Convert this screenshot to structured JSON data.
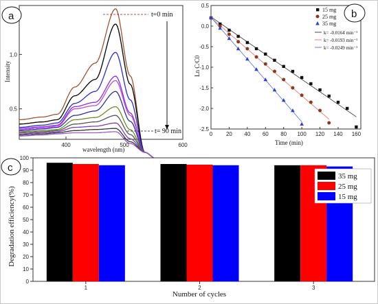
{
  "chart_data": [
    {
      "id": "a",
      "type": "line",
      "panel_label": "a",
      "xlabel": "wavelength (nm)",
      "ylabel": "Intensity",
      "xlim": [
        320,
        600
      ],
      "ylim": [
        0.22,
        1.45
      ],
      "xticks": [
        400,
        500,
        600
      ],
      "yticks": [
        0.5,
        1.0
      ],
      "ytick_labels": [
        "0.5",
        "1.0"
      ],
      "annotations": [
        {
          "text": "t=0 min"
        },
        {
          "text": "t= 90 min"
        }
      ],
      "curves": [
        {
          "color": "#a0522d",
          "p": [
            0.4,
            0.45,
            0.7,
            0.92,
            1.42,
            0.04
          ]
        },
        {
          "color": "#000000",
          "p": [
            0.36,
            0.4,
            0.62,
            0.77,
            1.28,
            0.04
          ]
        },
        {
          "color": "#2b2bd6",
          "p": [
            0.33,
            0.37,
            0.55,
            0.66,
            1.02,
            0.04
          ]
        },
        {
          "color": "#8a2be2",
          "p": [
            0.32,
            0.35,
            0.52,
            0.56,
            0.8,
            0.04
          ]
        },
        {
          "color": "#c04ad6",
          "p": [
            0.31,
            0.34,
            0.5,
            0.53,
            0.76,
            0.04
          ]
        },
        {
          "color": "#2b2bb0",
          "p": [
            0.3,
            0.33,
            0.44,
            0.48,
            0.66,
            0.04
          ]
        },
        {
          "color": "#6b8e23",
          "p": [
            0.29,
            0.31,
            0.4,
            0.42,
            0.52,
            0.04
          ]
        },
        {
          "color": "#555555",
          "p": [
            0.28,
            0.3,
            0.36,
            0.38,
            0.44,
            0.04
          ]
        },
        {
          "color": "#7a3fb5",
          "p": [
            0.27,
            0.29,
            0.33,
            0.34,
            0.37,
            0.04
          ]
        },
        {
          "color": "#333333",
          "p": [
            0.26,
            0.28,
            0.3,
            0.31,
            0.32,
            0.04
          ]
        },
        {
          "color": "#9b59d0",
          "p": [
            0.25,
            0.27,
            0.28,
            0.28,
            0.29,
            0.04
          ]
        }
      ]
    },
    {
      "id": "b",
      "type": "scatter",
      "panel_label": "b",
      "xlabel": "Time (min)",
      "ylabel": "Ln C/C0",
      "xlim": [
        0,
        165
      ],
      "ylim": [
        -2.5,
        0.5
      ],
      "xticks": [
        0,
        20,
        40,
        60,
        80,
        100,
        120,
        140,
        160
      ],
      "yticks": [
        0.5,
        0.0,
        -0.5,
        -1.0,
        -1.5,
        -2.0,
        -2.5
      ],
      "ytick_labels": [
        "0.5",
        "0.0",
        "-0.5",
        "-1.0",
        "-1.5",
        "-2.0",
        "-2.5"
      ],
      "series": [
        {
          "name": "15 mg",
          "marker": "square",
          "color": "#111111",
          "line_color": "#444444",
          "x": [
            0,
            10,
            20,
            30,
            40,
            50,
            60,
            70,
            80,
            90,
            100,
            110,
            120,
            130,
            140,
            150,
            160
          ],
          "y": [
            0.2,
            0.05,
            -0.1,
            -0.25,
            -0.4,
            -0.55,
            -0.68,
            -0.83,
            -0.98,
            -1.1,
            -1.25,
            -1.4,
            -1.55,
            -1.7,
            -1.85,
            -2.0,
            -2.45
          ]
        },
        {
          "name": "25 mg",
          "marker": "circle",
          "color": "#8b3a1f",
          "line_color": "#e08070",
          "x": [
            0,
            10,
            20,
            30,
            40,
            50,
            60,
            70,
            80,
            90,
            100,
            110,
            120,
            130
          ],
          "y": [
            0.2,
            0.0,
            -0.2,
            -0.38,
            -0.55,
            -0.75,
            -0.92,
            -1.1,
            -1.3,
            -1.5,
            -1.68,
            -1.85,
            -2.05,
            -2.35
          ]
        },
        {
          "name": "35 mg",
          "marker": "triangle",
          "color": "#2a40d0",
          "line_color": "#6a7ae0",
          "x": [
            0,
            10,
            20,
            30,
            40,
            50,
            60,
            70,
            80,
            90,
            100
          ],
          "y": [
            0.2,
            -0.05,
            -0.3,
            -0.55,
            -0.8,
            -1.05,
            -1.3,
            -1.55,
            -1.8,
            -2.05,
            -2.38
          ]
        }
      ],
      "fit_legend": [
        {
          "label": "k= -0.0164 min⁻¹",
          "color": "#444444"
        },
        {
          "label": "k= -0.0193 min⁻¹",
          "color": "#e08070"
        },
        {
          "label": "k= -0.0249 min⁻¹",
          "color": "#6a7ae0"
        }
      ]
    },
    {
      "id": "c",
      "type": "bar",
      "panel_label": "c",
      "xlabel": "Number of cycles",
      "ylabel": "Degradation efficiency(%)",
      "categories": [
        "1",
        "2",
        "3"
      ],
      "ylim": [
        0,
        100
      ],
      "yticks": [
        0,
        10,
        20,
        30,
        40,
        50,
        60,
        70,
        80,
        90,
        100
      ],
      "legend_position": "top-right",
      "series": [
        {
          "name": "35 mg",
          "color": "#000000",
          "values": [
            96,
            95,
            94
          ]
        },
        {
          "name": "25 mg",
          "color": "#ff0000",
          "values": [
            95,
            94.5,
            94
          ]
        },
        {
          "name": "15 mg",
          "color": "#0000ff",
          "values": [
            94,
            94,
            93
          ]
        }
      ]
    }
  ]
}
